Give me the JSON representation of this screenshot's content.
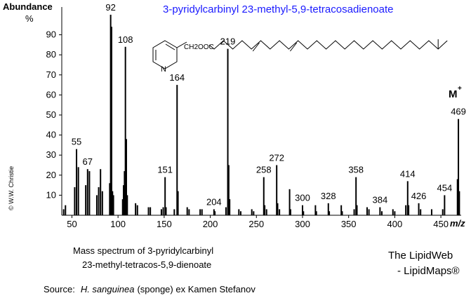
{
  "chart_data": {
    "type": "bar",
    "title": "3-pyridylcarbinyl 23-methyl-5,9-tetracosadienoate",
    "title_color": "#1a1aff",
    "y_label": "Abundance",
    "y_unit": "%",
    "x_label": "m/z",
    "color": "#000000",
    "grid": false,
    "x": [
      41,
      43,
      53,
      55,
      57,
      65,
      67,
      69,
      77,
      79,
      81,
      83,
      91,
      92,
      93,
      94,
      95,
      105,
      106,
      107,
      108,
      109,
      110,
      119,
      121,
      133,
      135,
      147,
      149,
      151,
      152,
      161,
      164,
      165,
      175,
      177,
      189,
      191,
      204,
      205,
      217,
      219,
      220,
      221,
      231,
      233,
      245,
      247,
      258,
      259,
      261,
      272,
      273,
      275,
      286,
      287,
      300,
      301,
      314,
      315,
      328,
      329,
      342,
      343,
      356,
      358,
      359,
      370,
      372,
      384,
      386,
      398,
      400,
      412,
      414,
      415,
      426,
      428,
      440,
      452,
      454,
      468,
      469,
      470
    ],
    "values": [
      3,
      5,
      14,
      33,
      24,
      15,
      23,
      22,
      10,
      14,
      23,
      12,
      16,
      100,
      94,
      12,
      10,
      8,
      15,
      22,
      84,
      38,
      10,
      6,
      5,
      4,
      4,
      3,
      4,
      19,
      4,
      3,
      65,
      12,
      4,
      3,
      3,
      3,
      3,
      2,
      4,
      83,
      25,
      8,
      3,
      2,
      3,
      2,
      19,
      5,
      3,
      25,
      6,
      3,
      13,
      3,
      5,
      2,
      5,
      2,
      6,
      2,
      5,
      2,
      3,
      19,
      5,
      4,
      3,
      4,
      2,
      3,
      2,
      5,
      17,
      5,
      6,
      3,
      3,
      3,
      10,
      18,
      48,
      12
    ],
    "labeled_peaks": [
      55,
      67,
      92,
      108,
      151,
      164,
      204,
      219,
      258,
      272,
      300,
      328,
      358,
      384,
      414,
      426,
      454,
      469
    ],
    "xlim": [
      39,
      472
    ],
    "xticks": [
      50,
      100,
      150,
      200,
      250,
      300,
      350,
      400,
      450
    ],
    "ylim": [
      0,
      100
    ],
    "yticks": [
      10,
      20,
      30,
      40,
      50,
      60,
      70,
      80,
      90
    ],
    "molecular_ion": {
      "symbol": "M",
      "charge": "+"
    }
  },
  "structure": {
    "group": "CH2OOC",
    "atom": "N"
  },
  "caption": [
    "Mass spectrum of 3-pyridylcarbinyl",
    "23-methyl-tetracos-5,9-dienoate"
  ],
  "brand": [
    "The LipidWeb",
    "- LipidMaps®"
  ],
  "source": {
    "prefix": "Source:",
    "species": "H. sanguinea",
    "rest": "(sponge) ex Kamen Stefanov"
  },
  "copyright": "© W.W. Christie"
}
